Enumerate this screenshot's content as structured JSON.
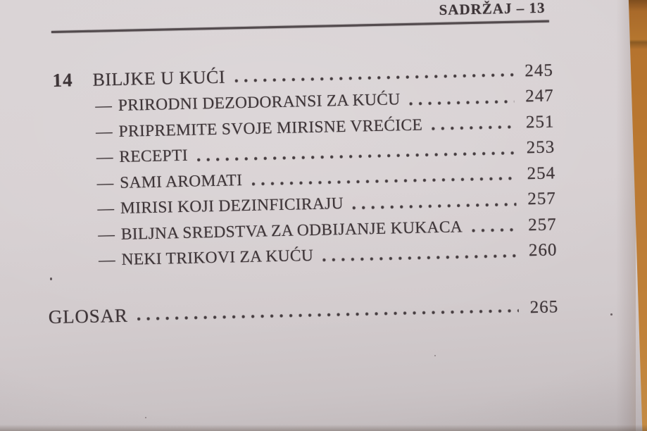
{
  "header": {
    "title": "SADRŽAJ – 13"
  },
  "toc": {
    "chapter": {
      "number": "14",
      "title": "BILJKE U KUĆI",
      "page": "245"
    },
    "items": [
      {
        "dash": "—",
        "title": "PRIRODNI DEZODORANSI ZA KUĆU",
        "page": "247"
      },
      {
        "dash": "—",
        "title": "PRIPREMITE SVOJE MIRISNE VREĆICE",
        "page": "251"
      },
      {
        "dash": "—",
        "title": "RECEPTI",
        "page": "253"
      },
      {
        "dash": "—",
        "title": "SAMI AROMATI",
        "page": "254"
      },
      {
        "dash": "—",
        "title": "MIRISI KOJI DEZINFICIRAJU",
        "page": "257"
      },
      {
        "dash": "—",
        "title": "BILJNA SREDSTVA ZA ODBIJANJE KUKACA",
        "page": "257"
      },
      {
        "dash": "—",
        "title": "NEKI TRIKOVI ZA KUĆU",
        "page": "260"
      }
    ],
    "glossary": {
      "title": "GLOSAR",
      "page": "265"
    }
  },
  "colors": {
    "ink": "#3e3538",
    "paper": "#d6cfd1",
    "rule": "#534b4e",
    "wood": "#b5732e"
  }
}
